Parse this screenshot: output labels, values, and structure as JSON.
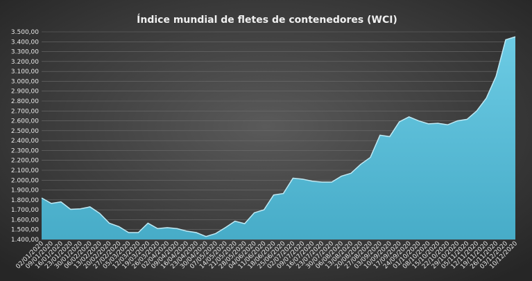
{
  "chart_data": {
    "type": "area",
    "title": "Índice mundial de fletes de contenedores (WCI)",
    "color": "#56bcd8",
    "grid": true,
    "categories": [
      "02/01/2020",
      "09/01/2020",
      "16/01/2020",
      "23/01/2020",
      "30/01/2020",
      "06/02/2020",
      "13/02/2020",
      "20/02/2020",
      "27/02/2020",
      "05/03/2020",
      "12/03/2020",
      "19/03/2020",
      "26/03/2020",
      "02/04/2020",
      "09/04/2020",
      "16/04/2020",
      "23/04/2020",
      "30/04/2020",
      "07/05/2020",
      "14/05/2020",
      "21/05/2020",
      "28/05/2020",
      "04/06/2020",
      "11/06/2020",
      "18/06/2020",
      "25/06/2020",
      "02/07/2020",
      "09/07/2020",
      "16/07/2020",
      "23/07/2020",
      "30/07/2020",
      "06/08/2020",
      "13/08/2020",
      "20/08/2020",
      "27/08/2020",
      "03/09/2020",
      "10/09/2020",
      "17/09/2020",
      "24/09/2020",
      "01/10/2020",
      "08/10/2020",
      "15/10/2020",
      "22/10/2020",
      "29/10/2020",
      "05/11/2020",
      "12/11/2020",
      "19/11/2020",
      "26/11/2020",
      "03/12/2020",
      "10/12/2020"
    ],
    "values": [
      1820,
      1765,
      1780,
      1705,
      1710,
      1730,
      1665,
      1565,
      1530,
      1470,
      1470,
      1565,
      1510,
      1520,
      1510,
      1485,
      1470,
      1430,
      1460,
      1520,
      1585,
      1560,
      1670,
      1700,
      1850,
      1865,
      2020,
      2010,
      1990,
      1980,
      1980,
      2040,
      2070,
      2160,
      2230,
      2455,
      2440,
      2590,
      2640,
      2600,
      2570,
      2575,
      2560,
      2600,
      2615,
      2700,
      2830,
      3050,
      3420,
      3450
    ],
    "ylim": [
      1400,
      3500
    ],
    "yticks": [
      {
        "value": 1400,
        "label": "1.400,00"
      },
      {
        "value": 1500,
        "label": "1.500,00"
      },
      {
        "value": 1600,
        "label": "1.600,00"
      },
      {
        "value": 1700,
        "label": "1.700,00"
      },
      {
        "value": 1800,
        "label": "1.800,00"
      },
      {
        "value": 1900,
        "label": "1.900,00"
      },
      {
        "value": 2000,
        "label": "2.000,00"
      },
      {
        "value": 2100,
        "label": "2.100,00"
      },
      {
        "value": 2200,
        "label": "2.200,00"
      },
      {
        "value": 2300,
        "label": "2.300,00"
      },
      {
        "value": 2400,
        "label": "2.400,00"
      },
      {
        "value": 2500,
        "label": "2.500,00"
      },
      {
        "value": 2600,
        "label": "2.600,00"
      },
      {
        "value": 2700,
        "label": "2.700,00"
      },
      {
        "value": 2800,
        "label": "2.800,00"
      },
      {
        "value": 2900,
        "label": "2.900,00"
      },
      {
        "value": 3000,
        "label": "3.000,00"
      },
      {
        "value": 3100,
        "label": "3.100,00"
      },
      {
        "value": 3200,
        "label": "3.200,00"
      },
      {
        "value": 3300,
        "label": "3.300,00"
      },
      {
        "value": 3400,
        "label": "3.400,00"
      },
      {
        "value": 3500,
        "label": "3.500,00"
      }
    ]
  }
}
